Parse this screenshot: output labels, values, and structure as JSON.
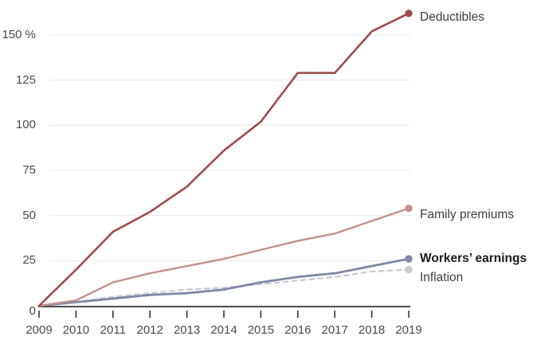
{
  "chart_data": {
    "type": "line",
    "x_values": [
      "2009",
      "2010",
      "2011",
      "2012",
      "2013",
      "2014",
      "2015",
      "2016",
      "2017",
      "2018",
      "2019"
    ],
    "y_axis": {
      "unit": "%",
      "tick_labels": [
        "0",
        "25",
        "50",
        "75",
        "100",
        "125",
        "150 %"
      ],
      "tick_values": [
        0,
        25,
        50,
        75,
        100,
        125,
        150
      ],
      "ylim": [
        0,
        165
      ],
      "grid": "horizontal"
    },
    "legend_position": "right of line ends",
    "series": [
      {
        "name": "Deductibles",
        "color": "#a04c4c",
        "style": "solid",
        "end_value_pct": 162,
        "values": [
          0,
          20,
          41,
          52,
          66,
          86,
          102,
          129,
          129,
          152,
          162
        ]
      },
      {
        "name": "Family premiums",
        "color": "#c58f8b",
        "style": "solid",
        "end_value_pct": 54,
        "values": [
          0,
          3,
          13,
          18,
          22,
          26,
          31,
          36,
          40,
          47,
          54
        ]
      },
      {
        "name": "Workers’ earnings",
        "color": "#7e88a5",
        "style": "solid",
        "end_value_pct": 26,
        "values": [
          0,
          2,
          4,
          6,
          7,
          9,
          13,
          16,
          18,
          22,
          26
        ]
      },
      {
        "name": "Inflation",
        "color": "#c9cad0",
        "style": "dashed",
        "end_value_pct": 20,
        "values": [
          0,
          2,
          5,
          7,
          9,
          10,
          12,
          14,
          16,
          19,
          20
        ]
      }
    ]
  },
  "colors": {
    "axis": "#333333",
    "gridline": "#e8e8e8",
    "tick_label": "#4a4a4a"
  }
}
